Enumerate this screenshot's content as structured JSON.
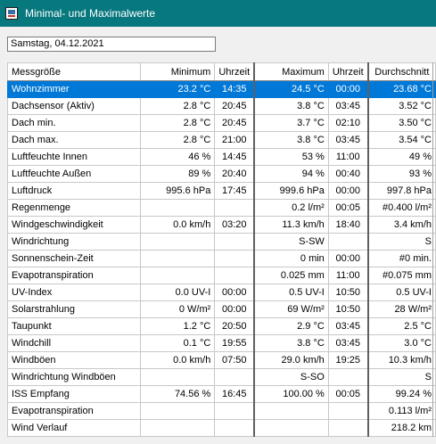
{
  "window": {
    "title": "Minimal- und Maximalwerte"
  },
  "date_field": {
    "value": "Samstag, 04.12.2021"
  },
  "table": {
    "columns": [
      "Messgröße",
      "Minimum",
      "Uhrzeit",
      "Maximum",
      "Uhrzeit",
      "Durchschnitt"
    ],
    "selected_row": 0,
    "rows": [
      [
        "Wohnzimmer",
        "23.2 °C",
        "14:35",
        "24.5 °C",
        "00:00",
        "23.68 °C"
      ],
      [
        "Dachsensor (Aktiv)",
        "2.8 °C",
        "20:45",
        "3.8 °C",
        "03:45",
        "3.52 °C"
      ],
      [
        "Dach min.",
        "2.8 °C",
        "20:45",
        "3.7 °C",
        "02:10",
        "3.50 °C"
      ],
      [
        "Dach max.",
        "2.8 °C",
        "21:00",
        "3.8 °C",
        "03:45",
        "3.54 °C"
      ],
      [
        "Luftfeuchte Innen",
        "46 %",
        "14:45",
        "53 %",
        "11:00",
        "49 %"
      ],
      [
        "Luftfeuchte Außen",
        "89 %",
        "20:40",
        "94 %",
        "00:40",
        "93 %"
      ],
      [
        "Luftdruck",
        "995.6 hPa",
        "17:45",
        "999.6 hPa",
        "00:00",
        "997.8 hPa"
      ],
      [
        "Regenmenge",
        "",
        "",
        "0.2 l/m²",
        "00:05",
        "#0.400 l/m²"
      ],
      [
        "Windgeschwindigkeit",
        "0.0 km/h",
        "03:20",
        "11.3 km/h",
        "18:40",
        "3.4 km/h"
      ],
      [
        "Windrichtung",
        "",
        "",
        "S-SW",
        "",
        "S"
      ],
      [
        "Sonnenschein-Zeit",
        "",
        "",
        "0 min",
        "00:00",
        "#0 min."
      ],
      [
        "Evapotranspiration",
        "",
        "",
        "0.025 mm",
        "11:00",
        "#0.075 mm"
      ],
      [
        "UV-Index",
        "0.0 UV-I",
        "00:00",
        "0.5 UV-I",
        "10:50",
        "0.5 UV-I"
      ],
      [
        "Solarstrahlung",
        "0 W/m²",
        "00:00",
        "69 W/m²",
        "10:50",
        "28 W/m²"
      ],
      [
        "Taupunkt",
        "1.2 °C",
        "20:50",
        "2.9 °C",
        "03:45",
        "2.5 °C"
      ],
      [
        "Windchill",
        "0.1 °C",
        "19:55",
        "3.8 °C",
        "03:45",
        "3.0 °C"
      ],
      [
        "Windböen",
        "0.0 km/h",
        "07:50",
        "29.0 km/h",
        "19:25",
        "10.3 km/h"
      ],
      [
        "Windrichtung Windböen",
        "",
        "",
        "S-SO",
        "",
        "S"
      ],
      [
        "ISS Empfang",
        "74.56 %",
        "16:45",
        "100.00 %",
        "00:05",
        "99.24 %"
      ],
      [
        "Evapotranspiration",
        "",
        "",
        "",
        "",
        "0.113 l/m²"
      ],
      [
        "Wind Verlauf",
        "",
        "",
        "",
        "",
        "218.2 km"
      ]
    ]
  }
}
